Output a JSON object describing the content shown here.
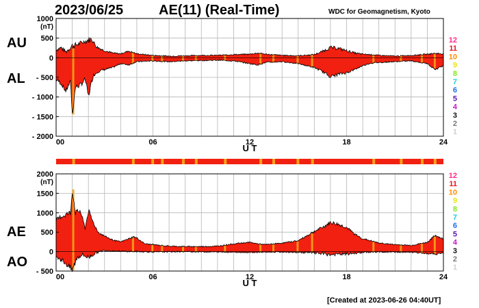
{
  "header": {
    "date": "2023/06/25",
    "title": "AE(11) (Real-Time)",
    "source": "WDC for Geomagnetism, Kyoto",
    "created": "[Created at 2023-06-26 04:40UT]"
  },
  "colors": {
    "fill_main": "#f22010",
    "fill_band": "#f5a21a",
    "grid": "#b4b4b4",
    "frame": "#000000"
  },
  "station_scale": [
    {
      "label": "12",
      "color": "#ff2a8a"
    },
    {
      "label": "11",
      "color": "#e8141e"
    },
    {
      "label": "10",
      "color": "#ff8c00"
    },
    {
      "label": "9",
      "color": "#e6e600"
    },
    {
      "label": "8",
      "color": "#80e619"
    },
    {
      "label": "7",
      "color": "#19d0d0"
    },
    {
      "label": "6",
      "color": "#1e6ee6"
    },
    {
      "label": "5",
      "color": "#5a14b4"
    },
    {
      "label": "4",
      "color": "#c814c8"
    },
    {
      "label": "3",
      "color": "#111111"
    },
    {
      "label": "2",
      "color": "#777777"
    },
    {
      "label": "1",
      "color": "#cfcfcf"
    }
  ],
  "chart_data": [
    {
      "type": "area",
      "name": "AU/AL",
      "labels": {
        "upper": "AU",
        "lower": "AL"
      },
      "xlabel": "U T",
      "ylabel_unit": "(nT)",
      "xlim": [
        0,
        24
      ],
      "ylim": [
        -2000,
        1000
      ],
      "x_ticks": [
        "00",
        "06",
        "12",
        "18",
        "24"
      ],
      "y_ticks": [
        "1000",
        "500",
        "0",
        "- 500",
        "- 1000",
        "- 1500",
        "- 2000"
      ],
      "series": [
        {
          "name": "AU",
          "x": [
            0,
            0.3,
            0.6,
            1.0,
            1.4,
            1.8,
            2.2,
            2.5,
            3.0,
            3.5,
            4.0,
            4.5,
            5.0,
            5.5,
            6,
            7,
            8,
            9,
            10,
            11,
            12,
            12.5,
            13,
            14,
            15,
            16,
            16.5,
            17,
            17.5,
            18,
            18.5,
            19,
            19.5,
            20,
            21,
            22,
            23,
            23.5,
            24
          ],
          "values": [
            200,
            260,
            150,
            300,
            350,
            420,
            480,
            280,
            180,
            120,
            100,
            170,
            100,
            80,
            60,
            40,
            50,
            60,
            60,
            80,
            90,
            120,
            90,
            60,
            50,
            80,
            160,
            260,
            240,
            180,
            120,
            90,
            80,
            60,
            40,
            60,
            90,
            110,
            100
          ]
        },
        {
          "name": "AL",
          "x": [
            0,
            0.3,
            0.6,
            0.9,
            1.0,
            1.2,
            1.5,
            1.8,
            2.0,
            2.3,
            2.6,
            3.0,
            3.5,
            4.0,
            4.5,
            5.0,
            5.5,
            6,
            7,
            8,
            9,
            10,
            11,
            12,
            12.5,
            13,
            14,
            15,
            16,
            16.5,
            17,
            17.5,
            18,
            18.5,
            19,
            19.5,
            20,
            21,
            22,
            23,
            23.5,
            24
          ],
          "values": [
            -550,
            -650,
            -850,
            -600,
            -1450,
            -750,
            -700,
            -550,
            -980,
            -450,
            -350,
            -300,
            -250,
            -150,
            -180,
            -100,
            -90,
            -80,
            -100,
            -80,
            -70,
            -60,
            -80,
            -150,
            -180,
            -120,
            -100,
            -150,
            -250,
            -350,
            -480,
            -420,
            -380,
            -300,
            -200,
            -140,
            -120,
            -100,
            -80,
            -150,
            -300,
            -200
          ]
        }
      ]
    },
    {
      "type": "area",
      "name": "AE/AO",
      "labels": {
        "upper": "AE",
        "lower": "AO"
      },
      "xlabel": "U T",
      "ylabel_unit": "(nT)",
      "xlim": [
        0,
        24
      ],
      "ylim": [
        -500,
        2000
      ],
      "x_ticks": [
        "00",
        "06",
        "12",
        "18",
        "24"
      ],
      "y_ticks": [
        "2000",
        "1500",
        "1000",
        "500",
        "0",
        "- 500"
      ],
      "series": [
        {
          "name": "AE",
          "x": [
            0,
            0.3,
            0.6,
            0.9,
            1.0,
            1.2,
            1.5,
            1.8,
            2.0,
            2.3,
            2.6,
            3.0,
            3.5,
            4.0,
            4.5,
            4.8,
            5.0,
            5.5,
            6,
            7,
            8,
            9,
            10,
            11,
            12,
            12.5,
            13,
            14,
            15,
            15.5,
            16,
            16.5,
            17,
            17.5,
            18,
            18.5,
            19,
            19.5,
            20,
            21,
            22,
            23,
            23.5,
            24
          ],
          "values": [
            800,
            900,
            950,
            1000,
            1600,
            1000,
            1050,
            600,
            1050,
            750,
            500,
            400,
            300,
            250,
            330,
            380,
            350,
            200,
            180,
            140,
            130,
            130,
            140,
            200,
            240,
            200,
            180,
            220,
            280,
            400,
            520,
            620,
            750,
            700,
            620,
            450,
            330,
            280,
            220,
            180,
            160,
            240,
            420,
            320
          ]
        },
        {
          "name": "AO",
          "x": [
            0,
            0.3,
            0.6,
            1.0,
            1.3,
            1.6,
            2.0,
            2.5,
            3.0,
            4.0,
            5.0,
            6,
            8,
            10,
            12,
            14,
            16,
            17,
            18,
            19,
            20,
            22,
            23.5,
            24
          ],
          "values": [
            -100,
            -200,
            -300,
            -480,
            -150,
            -80,
            -150,
            -20,
            30,
            10,
            0,
            -10,
            0,
            -10,
            -20,
            -10,
            -30,
            -80,
            -60,
            -20,
            -10,
            -20,
            -60,
            -40
          ]
        }
      ]
    }
  ]
}
